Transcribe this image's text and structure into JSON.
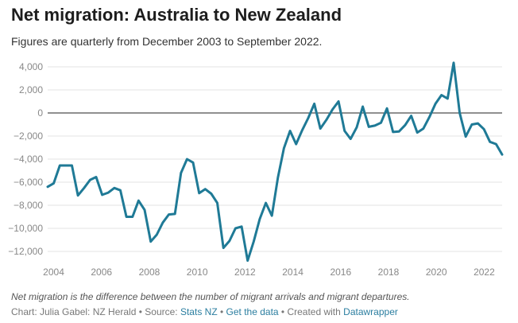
{
  "header": {
    "title": "Net migration: Australia to New Zealand",
    "subtitle": "Figures are quarterly from December 2003 to September 2022."
  },
  "footer": {
    "note": "Net migration is the difference between the number of migrant arrivals and migrant departures.",
    "chart_by": "Chart: Julia Gabel: NZ Herald",
    "source_prefix": " • Source: ",
    "source_link": "Stats NZ",
    "separator": " • ",
    "data_link": "Get the data",
    "created_prefix": " • Created with ",
    "created_link": "Datawrapper"
  },
  "chart_data": {
    "type": "line",
    "line_color": "#1f7a96",
    "zero_line_color": "#222222",
    "grid": true,
    "xlim": [
      2003.75,
      2022.75
    ],
    "ylim": [
      -12000,
      4000
    ],
    "x_ticks": [
      2004,
      2006,
      2008,
      2010,
      2012,
      2014,
      2016,
      2018,
      2020,
      2022
    ],
    "x_tick_labels": [
      "2004",
      "2006",
      "2008",
      "2010",
      "2012",
      "2014",
      "2016",
      "2018",
      "2020",
      "2022"
    ],
    "y_ticks": [
      4000,
      2000,
      0,
      -2000,
      -4000,
      -6000,
      -8000,
      -10000,
      -12000
    ],
    "y_tick_labels": [
      "4,000",
      "2,000",
      "0",
      "−2,000",
      "−4,000",
      "−6,000",
      "−8,000",
      "−10,000",
      "−12,000"
    ],
    "values": [
      -6400,
      -6100,
      -4550,
      -4550,
      -4550,
      -7150,
      -6500,
      -5800,
      -5550,
      -7100,
      -6900,
      -6500,
      -6700,
      -9000,
      -9000,
      -7600,
      -8400,
      -11150,
      -10550,
      -9500,
      -8800,
      -8750,
      -5200,
      -4000,
      -4300,
      -6950,
      -6600,
      -7000,
      -7800,
      -11700,
      -11100,
      -10000,
      -9850,
      -12800,
      -11150,
      -9200,
      -7800,
      -8900,
      -5600,
      -3050,
      -1550,
      -2700,
      -1500,
      -450,
      800,
      -1350,
      -600,
      300,
      1000,
      -1550,
      -2250,
      -1250,
      550,
      -1200,
      -1100,
      -850,
      400,
      -1650,
      -1600,
      -1050,
      -250,
      -1700,
      -1350,
      -350,
      800,
      1550,
      1250,
      4350,
      0,
      -2050,
      -1000,
      -900,
      -1400,
      -2500,
      -2700,
      -3600
    ]
  }
}
